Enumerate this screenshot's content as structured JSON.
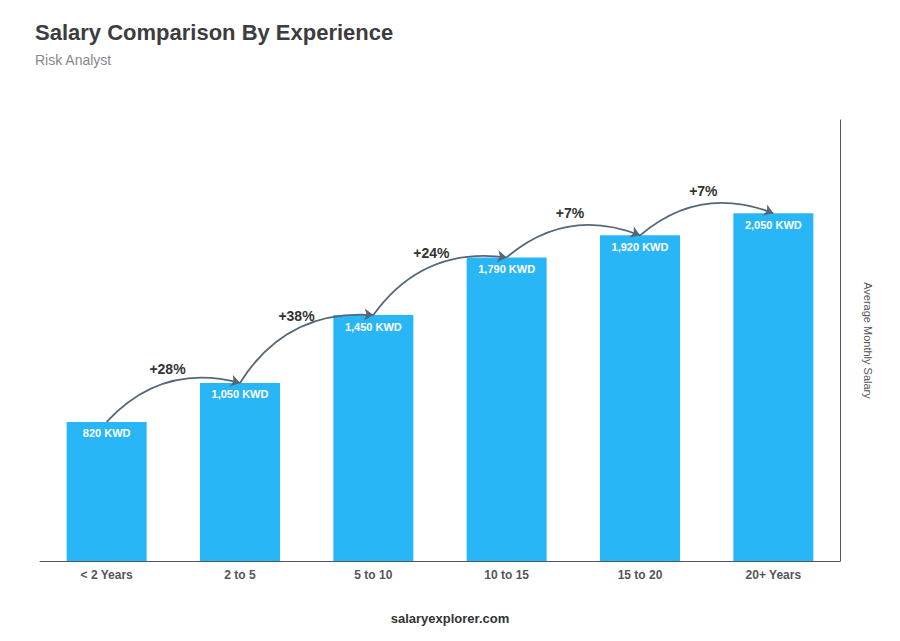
{
  "chart_data": {
    "type": "bar",
    "title": "Salary Comparison By Experience",
    "subtitle": "Risk Analyst",
    "categories": [
      "< 2 Years",
      "2 to 5",
      "5 to 10",
      "10 to 15",
      "15 to 20",
      "20+ Years"
    ],
    "values": [
      820,
      1050,
      1450,
      1790,
      1920,
      2050
    ],
    "value_labels": [
      "820 KWD",
      "1,050 KWD",
      "1,450 KWD",
      "1,790 KWD",
      "1,920 KWD",
      "2,050 KWD"
    ],
    "data_labels": true,
    "color": "#29b6f6",
    "ylabel": "Average Monthly Salary",
    "ylim": [
      0,
      2600
    ],
    "tick_labels": "x",
    "grid": false,
    "annotations": [
      "+28%",
      "+38%",
      "+24%",
      "+7%",
      "+7%"
    ],
    "footer": "salaryexplorer.com"
  }
}
